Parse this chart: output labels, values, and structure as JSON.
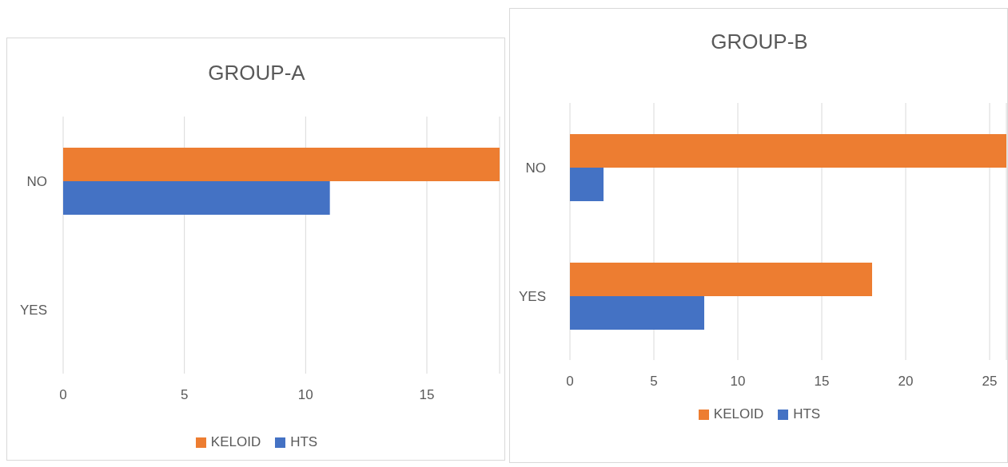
{
  "chart_data": [
    {
      "type": "bar",
      "orientation": "horizontal",
      "title": "GROUP-A",
      "categories": [
        "NO",
        "YES"
      ],
      "series": [
        {
          "name": "KELOID",
          "color": "#ed7d31",
          "values": [
            18,
            null
          ]
        },
        {
          "name": "HTS",
          "color": "#4472c4",
          "values": [
            11,
            null
          ]
        }
      ],
      "xlim": [
        0,
        18
      ],
      "xticks": [
        0,
        5,
        10,
        15
      ],
      "grid": "x",
      "legend": "bottom"
    },
    {
      "type": "bar",
      "orientation": "horizontal",
      "title": "GROUP-B",
      "categories": [
        "NO",
        "YES"
      ],
      "series": [
        {
          "name": "KELOID",
          "color": "#ed7d31",
          "values": [
            26,
            18
          ]
        },
        {
          "name": "HTS",
          "color": "#4472c4",
          "values": [
            2,
            8
          ]
        }
      ],
      "xlim": [
        0,
        26
      ],
      "xticks": [
        0,
        5,
        10,
        15,
        20,
        25
      ],
      "grid": "x",
      "legend": "bottom"
    }
  ]
}
